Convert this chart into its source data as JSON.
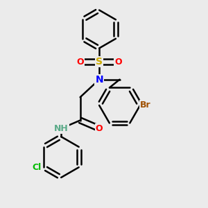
{
  "bg_color": "#ebebeb",
  "bond_color": "#000000",
  "bond_width": 1.8,
  "atom_colors": {
    "N": "#0000ff",
    "O": "#ff0000",
    "S": "#ccaa00",
    "Br": "#a05000",
    "Cl": "#00bb00",
    "NH": "#5aaa88"
  },
  "font_size": 9,
  "fig_size": [
    3.0,
    3.0
  ],
  "dpi": 100,
  "xlim": [
    -0.6,
    1.5
  ],
  "ylim": [
    -1.7,
    1.3
  ]
}
